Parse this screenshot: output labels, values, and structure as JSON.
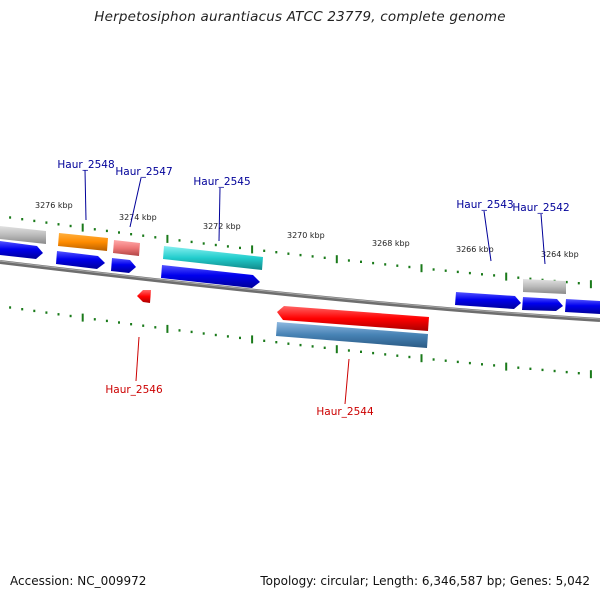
{
  "title": "Herpetosiphon aurantiacus ATCC 23779, complete genome",
  "footer": {
    "accession": "Accession: NC_009972",
    "summary": "Topology: circular; Length: 6,346,587 bp; Genes: 5,042"
  },
  "scale_labels": [
    "3276 kbp",
    "3274 kbp",
    "3272 kbp",
    "3270 kbp",
    "3268 kbp",
    "3266 kbp",
    "3264 kbp"
  ],
  "gene_labels_upper": [
    "Haur_2548",
    "Haur_2547",
    "Haur_2545",
    "Haur_2543",
    "Haur_2542"
  ],
  "gene_labels_lower": [
    "Haur_2546",
    "Haur_2544"
  ],
  "colors": {
    "backbone": "#777777",
    "cds": "#0000ee",
    "upper_label": "#000099",
    "lower_label": "#cc0000",
    "tick": "#1a7a1a",
    "orange_feature": "#ff8c00",
    "pink_feature": "#ee7777",
    "cyan_feature": "#22cccc",
    "grey_feature": "#bbbbbb",
    "red_feature": "#ff0000",
    "steel_feature": "#4682b4"
  }
}
